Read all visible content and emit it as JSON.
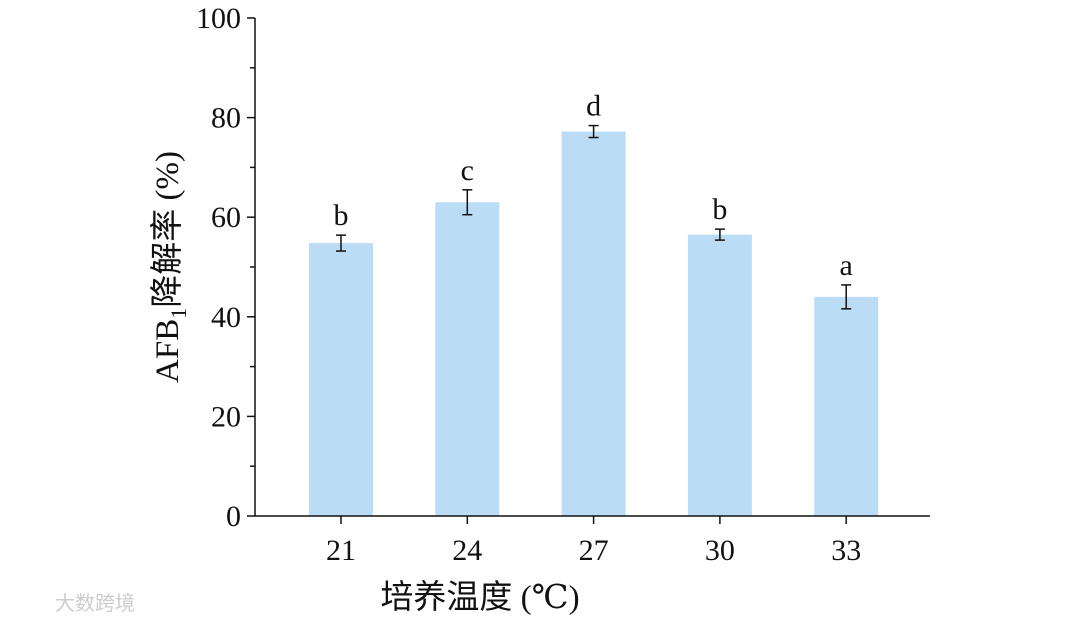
{
  "chart_data": {
    "type": "bar",
    "ylabel_parts": [
      "AFB",
      "1",
      "降解率 (%)"
    ],
    "xlabel": "培养温度 (℃)",
    "categories": [
      "21",
      "24",
      "27",
      "30",
      "33"
    ],
    "values": [
      54.8,
      63,
      77.2,
      56.5,
      44
    ],
    "errors": [
      1.6,
      2.5,
      1.2,
      1.1,
      2.4
    ],
    "significance_labels": [
      "b",
      "c",
      "d",
      "b",
      "a"
    ],
    "color": "#bbdcf5",
    "ylim": [
      0,
      100
    ],
    "yticks": [
      0,
      20,
      40,
      60,
      80,
      100
    ],
    "minor_yticks": [
      10,
      30,
      50,
      70,
      90
    ]
  },
  "watermark": "大数跨境"
}
